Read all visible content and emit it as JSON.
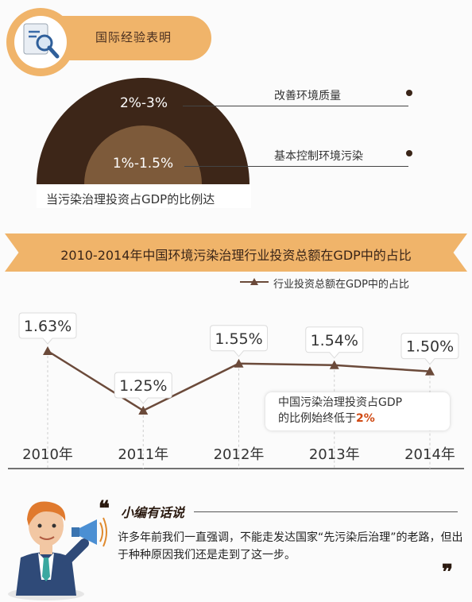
{
  "section1": {
    "title": "国际经验表明",
    "outer_range": "2%-3%",
    "inner_range": "1%-1.5%",
    "outer_note": "改善环境质量",
    "inner_note": "基本控制环境污染",
    "caption": "当污染治理投资占GDP的比例达",
    "colors": {
      "outer": "#3d2618",
      "inner": "#7d5a3a",
      "accent": "#f0b46a"
    }
  },
  "section2": {
    "title": "2010-2014年中国环境污染治理行业投资总额在GDP中的占比",
    "callout_line1": "中国污染治理投资占GDP",
    "callout_line2_prefix": "的比例始终低于",
    "callout_highlight": "2%"
  },
  "chart_data": {
    "type": "line",
    "title": "2010-2014年中国环境污染治理行业投资总额在GDP中的占比",
    "categories": [
      "2010年",
      "2011年",
      "2012年",
      "2013年",
      "2014年"
    ],
    "series": [
      {
        "name": "行业投资总额在GDP中的占比",
        "values": [
          1.63,
          1.25,
          1.55,
          1.54,
          1.5
        ],
        "labels": [
          "1.63%",
          "1.25%",
          "1.55%",
          "1.54%",
          "1.50%"
        ],
        "color": "#6b4a3a"
      }
    ],
    "legend": "top-right",
    "grid": false
  },
  "section3": {
    "editor_title": "小编有话说",
    "quote_open": "❝",
    "quote_close": "❞",
    "body": "许多年前我们一直强调，不能走发达国家“先污染后治理”的老路，但出于种种原因我们还是走到了这一步。"
  }
}
